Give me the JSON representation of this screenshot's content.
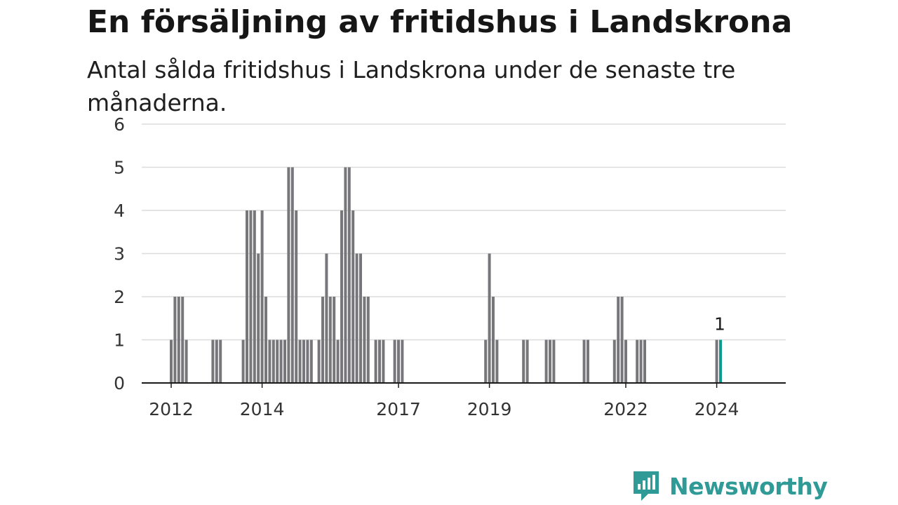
{
  "colors": {
    "bar": "#77767b",
    "highlight": "#0f9b8e",
    "grid": "#dcdcdc",
    "axis": "#1a1a1a",
    "brand": "#2f9a96"
  },
  "logo": {
    "name": "Newsworthy",
    "icon": "newsworthy-chart-bubble-icon"
  },
  "chart_data": {
    "type": "bar",
    "title": "En försäljning av fritidshus i Landskrona",
    "subtitle": "Antal sålda fritidshus i Landskrona under de senaste tre månaderna.",
    "ylim": [
      0,
      6
    ],
    "yticks": [
      0,
      1,
      2,
      3,
      4,
      5,
      6
    ],
    "xtick_labels": [
      "2012",
      "2014",
      "2017",
      "2019",
      "2022",
      "2024"
    ],
    "xticks_index": [
      10,
      34,
      70,
      94,
      130,
      154
    ],
    "grid": true,
    "legend": "none",
    "highlight_index": 155,
    "highlight_label": "1",
    "values": [
      0,
      0,
      0,
      0,
      0,
      0,
      0,
      0,
      0,
      0,
      1,
      2,
      2,
      2,
      1,
      0,
      0,
      0,
      0,
      0,
      0,
      1,
      1,
      1,
      0,
      0,
      0,
      0,
      0,
      1,
      4,
      4,
      4,
      3,
      4,
      2,
      1,
      1,
      1,
      1,
      1,
      5,
      5,
      4,
      1,
      1,
      1,
      1,
      0,
      1,
      2,
      3,
      2,
      2,
      1,
      4,
      5,
      5,
      4,
      3,
      3,
      2,
      2,
      0,
      1,
      1,
      1,
      0,
      0,
      1,
      1,
      1,
      0,
      0,
      0,
      0,
      0,
      0,
      0,
      0,
      0,
      0,
      0,
      0,
      0,
      0,
      0,
      0,
      0,
      0,
      0,
      0,
      0,
      1,
      3,
      2,
      1,
      0,
      0,
      0,
      0,
      0,
      0,
      1,
      1,
      0,
      0,
      0,
      0,
      1,
      1,
      1,
      0,
      0,
      0,
      0,
      0,
      0,
      0,
      1,
      1,
      0,
      0,
      0,
      0,
      0,
      0,
      1,
      2,
      2,
      1,
      0,
      0,
      1,
      1,
      1,
      0,
      0,
      0,
      0,
      0,
      0,
      0,
      0,
      0,
      0,
      0,
      0,
      0,
      0,
      0,
      0,
      0,
      0,
      1,
      1
    ]
  }
}
